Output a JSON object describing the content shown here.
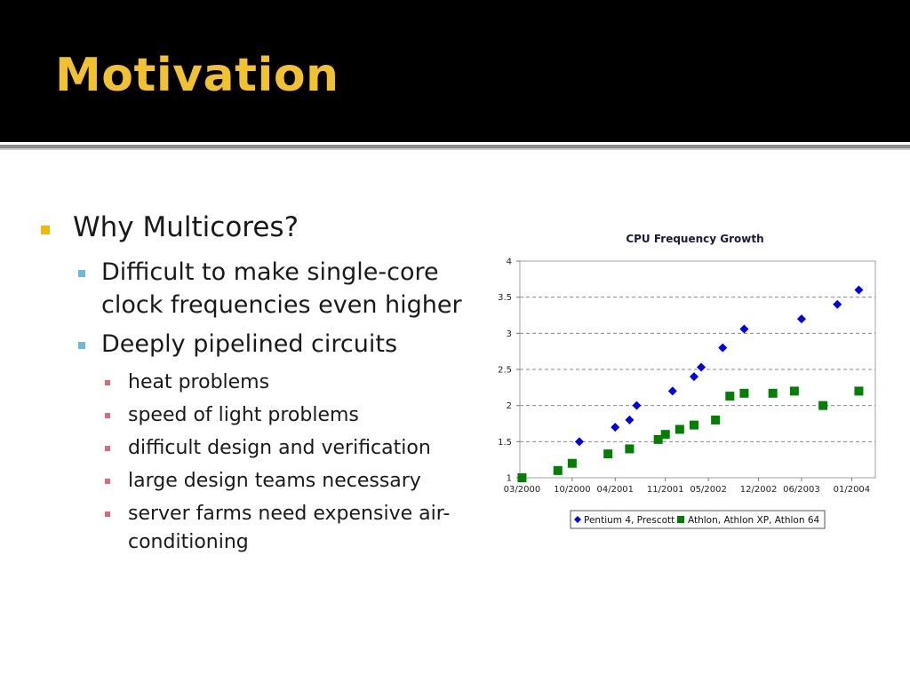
{
  "slide": {
    "title": "Motivation",
    "bullet_main": "Why Multicores?",
    "sub_bullets": [
      {
        "lines": [
          "Difficult to make single-core",
          "clock frequencies even higher"
        ]
      },
      {
        "lines": [
          "Deeply pipelined circuits"
        ]
      }
    ],
    "sub_sub_bullets": [
      {
        "lines": [
          "heat problems"
        ]
      },
      {
        "lines": [
          "speed of light problems"
        ]
      },
      {
        "lines": [
          "difficult design and verification"
        ]
      },
      {
        "lines": [
          "large design teams necessary"
        ]
      },
      {
        "lines": [
          "server farms need expensive air-",
          "conditioning"
        ]
      }
    ],
    "colors": {
      "title_bg": "#000000",
      "title_text": "#f2c12e",
      "bullet_l1": "#f2b700",
      "bullet_l2": "#6fb9d6",
      "bullet_l3": "#d96a7a"
    }
  },
  "chart_data": {
    "type": "scatter",
    "title": "CPU Frequency Growth",
    "xlabel": "",
    "ylabel": "",
    "x_tick_labels": [
      "03/2000",
      "10/2000",
      "04/2001",
      "11/2001",
      "05/2002",
      "12/2002",
      "06/2003",
      "01/2004"
    ],
    "ylim": [
      1,
      4
    ],
    "y_ticks": [
      1,
      1.5,
      2,
      2.5,
      3,
      3.5,
      4
    ],
    "y_tick_labels": [
      "1",
      "1.5",
      "2",
      "2.5",
      "3",
      "3.5",
      "4"
    ],
    "grid": "horizontal dashed",
    "legend": "bottom",
    "series": [
      {
        "name": "Pentium 4, Prescott",
        "marker": "diamond",
        "color": "#0000ee",
        "points": [
          [
            "2000-11",
            1.5
          ],
          [
            "2001-04",
            1.7
          ],
          [
            "2001-06",
            1.8
          ],
          [
            "2001-07",
            2.0
          ],
          [
            "2001-12",
            2.2
          ],
          [
            "2002-03",
            2.4
          ],
          [
            "2002-04",
            2.53
          ],
          [
            "2002-07",
            2.8
          ],
          [
            "2002-10",
            3.06
          ],
          [
            "2003-06",
            3.2
          ],
          [
            "2003-11",
            3.4
          ],
          [
            "2004-02",
            3.6
          ]
        ]
      },
      {
        "name": "Athlon, Athlon XP, Athlon 64",
        "marker": "square",
        "color": "#008000",
        "points": [
          [
            "2000-03",
            1.0
          ],
          [
            "2000-08",
            1.1
          ],
          [
            "2000-10",
            1.2
          ],
          [
            "2001-03",
            1.33
          ],
          [
            "2001-06",
            1.4
          ],
          [
            "2001-10",
            1.53
          ],
          [
            "2001-11",
            1.6
          ],
          [
            "2002-01",
            1.67
          ],
          [
            "2002-03",
            1.73
          ],
          [
            "2002-06",
            1.8
          ],
          [
            "2002-08",
            2.13
          ],
          [
            "2002-10",
            2.17
          ],
          [
            "2003-02",
            2.17
          ],
          [
            "2003-05",
            2.2
          ],
          [
            "2003-09",
            2.0
          ],
          [
            "2004-02",
            2.2
          ]
        ]
      }
    ]
  }
}
